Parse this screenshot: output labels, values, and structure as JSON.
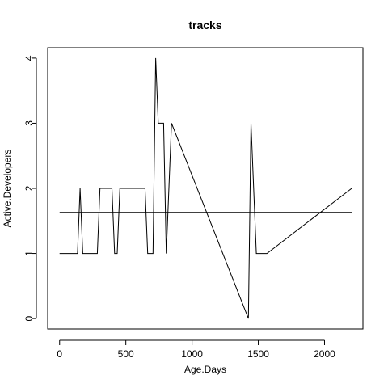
{
  "chart_data": {
    "type": "line",
    "title": "tracks",
    "xlabel": "Age.Days",
    "ylabel": "Active.Developers",
    "xlim": [
      -90,
      2290
    ],
    "ylim": [
      -0.16,
      4.16
    ],
    "x_ticks": [
      0,
      500,
      1000,
      1500,
      2000
    ],
    "y_ticks": [
      0,
      1,
      2,
      3,
      4
    ],
    "grid": false,
    "legend": "none",
    "series": [
      {
        "x": [
          0,
          135,
          155,
          175,
          285,
          305,
          395,
          415,
          435,
          455,
          645,
          665,
          705,
          725,
          745,
          785,
          805,
          845,
          1425,
          1445,
          1485,
          1565,
          2205
        ],
        "y": [
          1,
          1,
          2,
          1,
          1,
          2,
          2,
          1,
          1,
          2,
          2,
          1,
          1,
          4,
          3,
          3,
          1,
          3,
          0,
          3,
          1,
          1,
          2
        ]
      }
    ],
    "hline": 1.63,
    "hline_x": [
      0,
      2205
    ]
  }
}
